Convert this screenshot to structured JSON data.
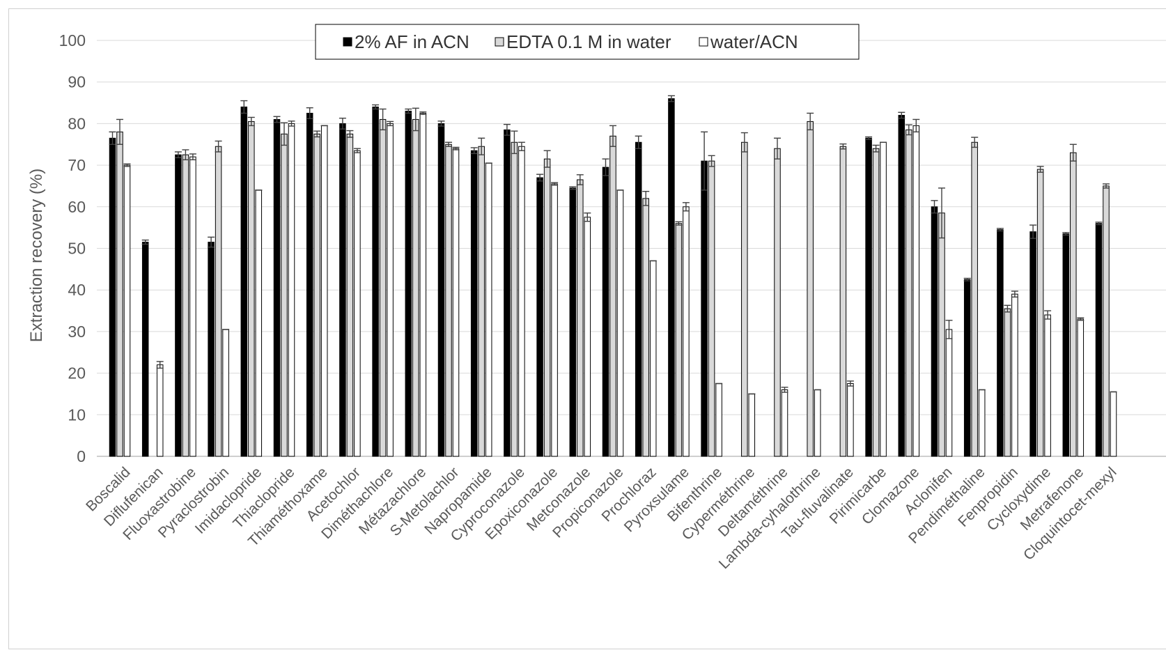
{
  "chart_data": {
    "type": "bar",
    "ylabel": "Extraction recovery (%)",
    "xlabel": "",
    "ylim": [
      0,
      100
    ],
    "yticks": [
      0,
      10,
      20,
      30,
      40,
      50,
      60,
      70,
      80,
      90,
      100
    ],
    "grid": true,
    "legend_position": "top-center",
    "categories": [
      "Boscalid",
      "Diflufenican",
      "Fluoxastrobine",
      "Pyraclostrobin",
      "Imidaclopride",
      "Thiaclopride",
      "Thiaméthoxame",
      "Acetochlor",
      "Diméthachlore",
      "Métazachlore",
      "S-Metolachlor",
      "Napropamide",
      "Cyproconazole",
      "Epoxiconazole",
      "Metconazole",
      "Propiconazole",
      "Prochloraz",
      "Pyroxsulame",
      "Bifenthrine",
      "Cyperméthrine",
      "Deltaméthrine",
      "Lambda-cyhalothrine",
      "Tau-fluvalinate",
      "Pirimicarbe",
      "Clomazone",
      "Aclonifen",
      "Pendiméthaline",
      "Fenpropidin",
      "Cycloxydime",
      "Metrafenone",
      "Cloquintocet-mexyl"
    ],
    "series": [
      {
        "name": "2% AF in ACN",
        "color": "#000000",
        "values": [
          76.5,
          51.5,
          72.5,
          51.5,
          84,
          81,
          82.5,
          80,
          84,
          83,
          80,
          73.5,
          78.5,
          67,
          64.5,
          69.5,
          75.5,
          86,
          71,
          0,
          0,
          0,
          0,
          76.5,
          82,
          60,
          42.5,
          54.5,
          54,
          53.5,
          56
        ],
        "errors": [
          1.5,
          0.5,
          0.7,
          1.2,
          1.5,
          0.7,
          1.3,
          1.3,
          0.5,
          0.5,
          0.6,
          0.7,
          1.3,
          0.8,
          0.3,
          2.0,
          1.5,
          0.7,
          7.0,
          0,
          0,
          0,
          0,
          0.3,
          0.7,
          1.5,
          0.3,
          0.3,
          1.6,
          0.3,
          0.3
        ]
      },
      {
        "name": "EDTA 0.1 M in water",
        "color": "#d9d9d9",
        "values": [
          78,
          0,
          72.5,
          74.5,
          80.5,
          77.5,
          77.5,
          77.5,
          81,
          81,
          75,
          74.5,
          75.5,
          71.5,
          66.5,
          77,
          62,
          56,
          71,
          75.5,
          74,
          80.5,
          74.5,
          74,
          78.5,
          58.5,
          75.5,
          35.5,
          69,
          73,
          65
        ],
        "errors": [
          3.0,
          0,
          1.2,
          1.3,
          1.0,
          2.7,
          0.7,
          0.8,
          2.5,
          2.7,
          0.5,
          2.0,
          2.7,
          2.0,
          1.2,
          2.5,
          1.7,
          0.4,
          1.3,
          2.3,
          2.5,
          2.0,
          0.6,
          0.8,
          1.2,
          6.0,
          1.2,
          0.8,
          0.7,
          2.0,
          0.5
        ]
      },
      {
        "name": "water/ACN",
        "color": "#ffffff",
        "values": [
          70,
          22,
          72,
          30.5,
          64,
          80,
          79.5,
          73.5,
          80,
          82.5,
          74,
          70.5,
          74.5,
          65.5,
          57.5,
          64,
          47,
          60,
          17.5,
          15,
          16,
          16,
          17.5,
          75.5,
          79.5,
          30.5,
          16,
          39,
          34,
          33,
          15.5
        ],
        "errors": [
          0.3,
          0.8,
          0.7,
          0,
          0,
          0.6,
          0,
          0.5,
          0.5,
          0.3,
          0.3,
          0,
          1.0,
          0.3,
          1.0,
          0,
          0,
          1.0,
          0,
          0,
          0.6,
          0,
          0.6,
          0,
          1.5,
          2.2,
          0,
          0.7,
          1.0,
          0.3,
          0
        ]
      }
    ]
  }
}
